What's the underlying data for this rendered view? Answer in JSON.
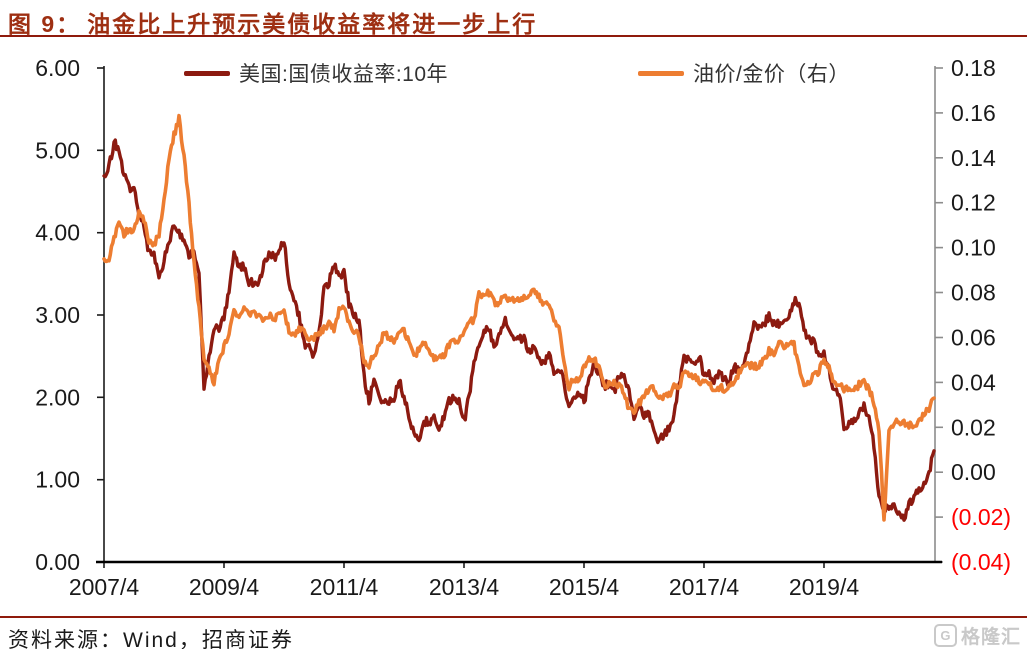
{
  "title": {
    "prefix": "图 9：",
    "text": "油金比上升预示美债收益率将进一步上行"
  },
  "legend": {
    "items": [
      {
        "label": "美国:国债收益率:10年",
        "color": "#8C1A10"
      },
      {
        "label": "油价/金价（右）",
        "color": "#ED7D31"
      }
    ]
  },
  "footer": {
    "source": "资料来源：Wind，招商证券",
    "logo_letter": "G",
    "logo_text": "格隆汇"
  },
  "colors": {
    "title": "#9E2F12",
    "rule": "#8F1A0C",
    "axis_black": "#1a1a1a",
    "axis_gray": "#8c8c8c",
    "negative_label": "#FF0000",
    "series_treasury": "#8C1A10",
    "series_oilgold": "#ED7D31"
  },
  "chart_data": {
    "type": "line",
    "title": "油金比上升预示美债收益率将进一步上行",
    "x_unit": "month",
    "x_start": "2007/4",
    "x_end": "2021/2",
    "grid": false,
    "legend_position": "top",
    "x_tick_labels": [
      "2007/4",
      "2009/4",
      "2011/4",
      "2013/4",
      "2015/4",
      "2017/4",
      "2019/4"
    ],
    "x_tick_month_index": [
      0,
      24,
      48,
      72,
      96,
      120,
      144
    ],
    "left_axis": {
      "range": [
        0,
        6
      ],
      "tick_step": 1,
      "tick_labels": [
        "6.00",
        "5.00",
        "4.00",
        "3.00",
        "2.00",
        "1.00",
        "0.00"
      ]
    },
    "right_axis": {
      "range": [
        -0.04,
        0.18
      ],
      "tick_step": 0.02,
      "tick_labels": [
        "0.18",
        "0.16",
        "0.14",
        "0.12",
        "0.10",
        "0.08",
        "0.06",
        "0.04",
        "0.02",
        "0.00",
        "(0.02)",
        "(0.04)"
      ]
    },
    "series": [
      {
        "name": "美国:国债收益率:10年",
        "axis": "left",
        "color": "#8C1A10",
        "values": [
          4.69,
          4.8,
          5.1,
          5.0,
          4.68,
          4.55,
          4.55,
          4.2,
          4.1,
          3.75,
          3.74,
          3.5,
          3.65,
          3.9,
          4.1,
          4.0,
          3.88,
          3.7,
          3.8,
          3.5,
          2.1,
          2.5,
          2.87,
          2.82,
          2.95,
          3.3,
          3.75,
          3.55,
          3.6,
          3.4,
          3.4,
          3.4,
          3.6,
          3.73,
          3.7,
          3.75,
          3.9,
          3.4,
          3.2,
          3.0,
          2.65,
          2.6,
          2.5,
          2.8,
          3.3,
          3.4,
          3.6,
          3.45,
          3.5,
          3.15,
          3.0,
          2.95,
          2.25,
          1.95,
          2.2,
          2.0,
          1.95,
          1.95,
          2.0,
          2.2,
          2.0,
          1.75,
          1.6,
          1.5,
          1.7,
          1.7,
          1.75,
          1.65,
          1.75,
          1.95,
          2.0,
          1.95,
          1.7,
          2.0,
          2.45,
          2.6,
          2.8,
          2.85,
          2.6,
          2.75,
          2.95,
          2.85,
          2.7,
          2.7,
          2.7,
          2.55,
          2.6,
          2.5,
          2.4,
          2.55,
          2.3,
          2.35,
          2.2,
          1.85,
          2.0,
          2.05,
          1.95,
          2.2,
          2.4,
          2.3,
          2.15,
          2.15,
          2.05,
          2.25,
          2.25,
          2.05,
          1.75,
          1.9,
          1.8,
          1.8,
          1.6,
          1.45,
          1.55,
          1.63,
          1.78,
          2.15,
          2.5,
          2.43,
          2.4,
          2.5,
          2.28,
          2.3,
          2.18,
          2.32,
          2.2,
          2.2,
          2.36,
          2.35,
          2.42,
          2.6,
          2.88,
          2.84,
          2.9,
          3.0,
          2.9,
          2.88,
          2.88,
          3.02,
          3.18,
          3.1,
          2.8,
          2.7,
          2.68,
          2.5,
          2.52,
          2.35,
          2.05,
          2.05,
          1.6,
          1.7,
          1.7,
          1.82,
          1.88,
          1.75,
          1.4,
          0.8,
          0.65,
          0.68,
          0.7,
          0.58,
          0.55,
          0.68,
          0.8,
          0.88,
          0.93,
          1.1,
          1.35
        ]
      },
      {
        "name": "油价/金价（右）",
        "axis": "right",
        "color": "#ED7D31",
        "values": [
          0.095,
          0.094,
          0.104,
          0.111,
          0.106,
          0.108,
          0.108,
          0.116,
          0.112,
          0.102,
          0.101,
          0.106,
          0.121,
          0.14,
          0.15,
          0.158,
          0.14,
          0.119,
          0.093,
          0.073,
          0.05,
          0.047,
          0.04,
          0.05,
          0.056,
          0.062,
          0.073,
          0.068,
          0.074,
          0.069,
          0.072,
          0.069,
          0.067,
          0.07,
          0.068,
          0.072,
          0.073,
          0.062,
          0.061,
          0.064,
          0.062,
          0.059,
          0.06,
          0.062,
          0.064,
          0.066,
          0.064,
          0.072,
          0.073,
          0.066,
          0.063,
          0.061,
          0.049,
          0.048,
          0.052,
          0.056,
          0.062,
          0.06,
          0.059,
          0.063,
          0.063,
          0.058,
          0.051,
          0.055,
          0.058,
          0.054,
          0.051,
          0.051,
          0.052,
          0.057,
          0.059,
          0.058,
          0.062,
          0.067,
          0.068,
          0.08,
          0.078,
          0.08,
          0.076,
          0.074,
          0.08,
          0.076,
          0.077,
          0.076,
          0.078,
          0.079,
          0.081,
          0.078,
          0.075,
          0.076,
          0.068,
          0.064,
          0.049,
          0.038,
          0.042,
          0.04,
          0.047,
          0.05,
          0.051,
          0.046,
          0.038,
          0.04,
          0.04,
          0.039,
          0.035,
          0.028,
          0.026,
          0.031,
          0.033,
          0.037,
          0.037,
          0.033,
          0.033,
          0.034,
          0.039,
          0.037,
          0.045,
          0.044,
          0.043,
          0.04,
          0.041,
          0.039,
          0.036,
          0.038,
          0.037,
          0.039,
          0.04,
          0.044,
          0.046,
          0.048,
          0.047,
          0.047,
          0.05,
          0.054,
          0.053,
          0.057,
          0.056,
          0.058,
          0.057,
          0.046,
          0.038,
          0.04,
          0.043,
          0.045,
          0.05,
          0.047,
          0.039,
          0.04,
          0.036,
          0.038,
          0.036,
          0.039,
          0.04,
          0.037,
          0.031,
          0.019,
          -0.021,
          0.019,
          0.022,
          0.022,
          0.022,
          0.021,
          0.021,
          0.023,
          0.026,
          0.028,
          0.033
        ]
      }
    ]
  }
}
